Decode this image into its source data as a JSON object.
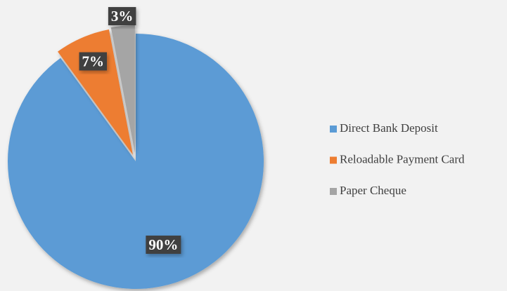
{
  "chart_data": {
    "type": "pie",
    "categories": [
      "Direct Bank Deposit",
      "Reloadable Payment Card",
      "Paper Cheque"
    ],
    "values": [
      90,
      7,
      3
    ],
    "value_labels": [
      "90%",
      "7%",
      "3%"
    ],
    "colors": [
      "#5b9bd5",
      "#ed7d31",
      "#a5a5a5"
    ],
    "legend": "right"
  }
}
